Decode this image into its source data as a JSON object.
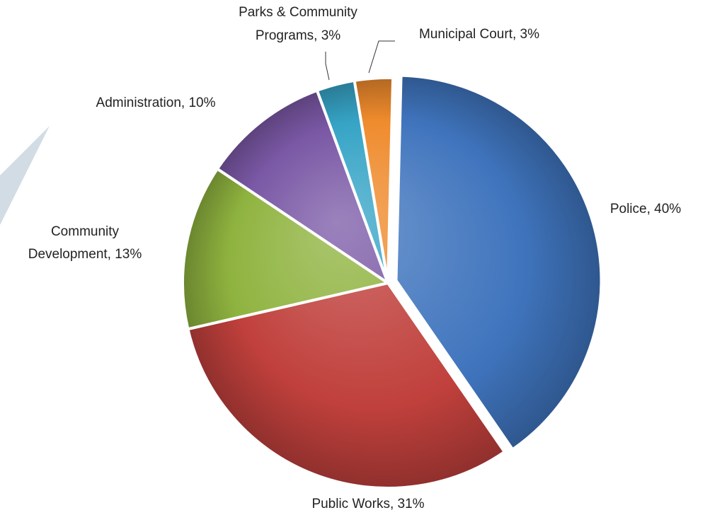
{
  "chart_data": {
    "type": "pie",
    "title": "",
    "categories": [
      "Police",
      "Public Works",
      "Community Development",
      "Administration",
      "Parks & Community Programs",
      "Municipal Court"
    ],
    "values": [
      40,
      31,
      13,
      10,
      3,
      3
    ],
    "labels": [
      [
        "Police, 40%"
      ],
      [
        "Public Works, 31%"
      ],
      [
        "Community",
        "Development,  13%"
      ],
      [
        "Administration, 10%"
      ],
      [
        "Parks & Community",
        "Programs, 3%"
      ],
      [
        "Municipal Court, 3%"
      ]
    ],
    "colors": [
      "#3f74bd",
      "#c0403c",
      "#8fb33f",
      "#7a58a5",
      "#36a4c6",
      "#ef8b2d"
    ],
    "legend": "none",
    "value_unit": "%"
  }
}
